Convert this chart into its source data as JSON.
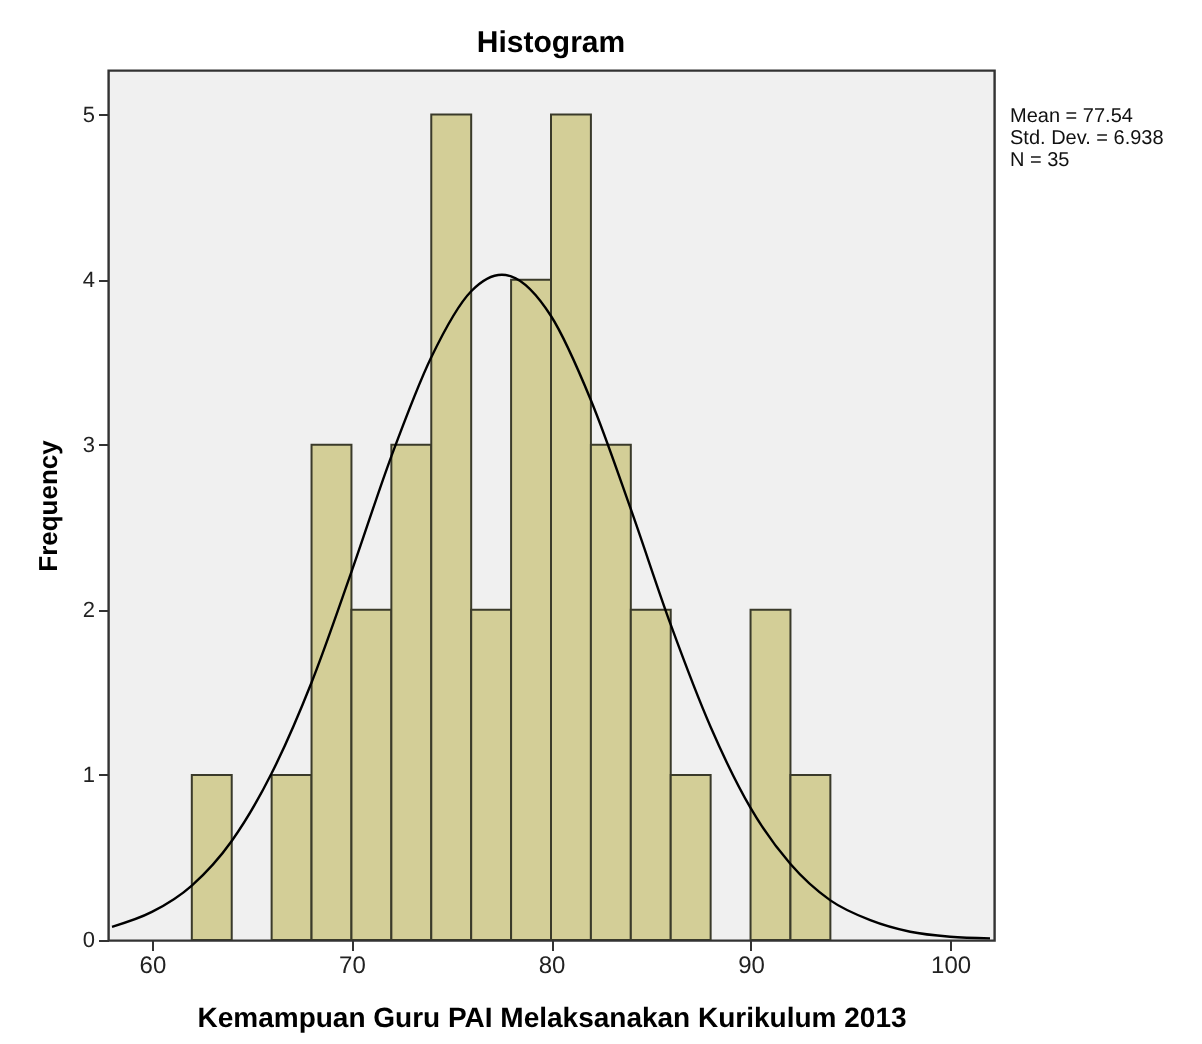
{
  "chart_data": {
    "type": "histogram",
    "title": "Histogram",
    "xlabel": "Kemampuan Guru PAI Melaksanakan Kurikulum 2013",
    "ylabel": "Frequency",
    "xlim": [
      57.8,
      102.2
    ],
    "xticks": [
      60,
      70,
      80,
      90,
      100
    ],
    "ylim": [
      0,
      5.27
    ],
    "yticks": [
      0,
      1,
      2,
      3,
      4,
      5
    ],
    "grid": false,
    "series": [
      {
        "color": "#d3ce97",
        "bins": [
          62,
          64,
          66,
          68,
          70,
          72,
          74,
          76,
          78,
          80,
          82,
          84,
          86,
          88,
          90,
          92,
          94
        ],
        "values": [
          1,
          0,
          1,
          3,
          2,
          3,
          5,
          2,
          4,
          5,
          3,
          2,
          1,
          0,
          2,
          1
        ]
      },
      {
        "type": "line",
        "color": "#000000",
        "x": [
          58,
          60,
          62,
          64,
          66,
          68,
          70,
          72,
          74,
          76,
          77.54,
          78,
          80,
          82,
          84,
          86,
          88,
          90,
          92,
          94,
          96,
          98,
          100,
          102
        ],
        "values": [
          0.08,
          0.17,
          0.33,
          0.6,
          1.01,
          1.56,
          2.23,
          2.93,
          3.53,
          3.93,
          4.03,
          4.02,
          3.78,
          3.27,
          2.61,
          1.91,
          1.29,
          0.8,
          0.46,
          0.24,
          0.12,
          0.05,
          0.02,
          0.01
        ]
      }
    ],
    "annotations": [
      "Mean = 77.54",
      "Std. Dev. = 6.938",
      "N = 35"
    ]
  }
}
